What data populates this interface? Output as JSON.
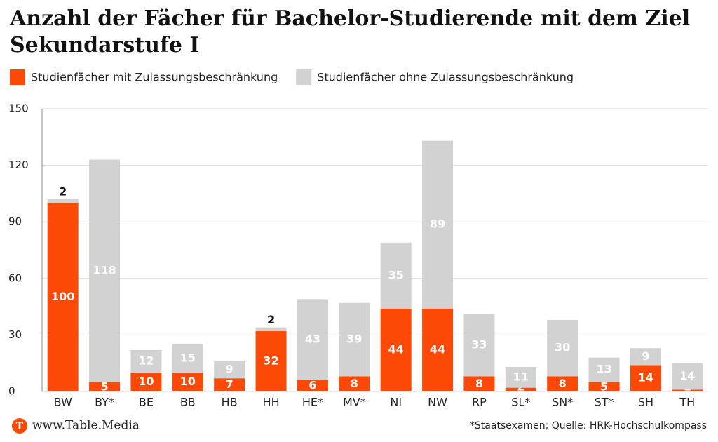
{
  "chart_data": {
    "type": "stacked_bar",
    "title": "Anzahl der Fächer für Bachelor-Studierende mit dem Ziel Sekundarstufe I",
    "categories": [
      "BW",
      "BY*",
      "BE",
      "BB",
      "HB",
      "HH",
      "HE*",
      "MV*",
      "NI",
      "NW",
      "RP",
      "SL*",
      "SN*",
      "ST*",
      "SH",
      "TH"
    ],
    "series": [
      {
        "name": "Studienfächer mit Zulassungsbeschränkung",
        "color": "#fc4a06",
        "values": [
          100,
          5,
          10,
          10,
          7,
          32,
          6,
          8,
          44,
          44,
          8,
          2,
          8,
          5,
          14,
          1
        ]
      },
      {
        "name": "Studienfächer ohne Zulassungsbeschränkung",
        "color": "#d2d2d2",
        "values": [
          2,
          118,
          12,
          15,
          9,
          2,
          43,
          39,
          35,
          89,
          33,
          11,
          30,
          13,
          9,
          14
        ]
      }
    ],
    "ylim": [
      0,
      150
    ],
    "yticks": [
      0,
      30,
      60,
      90,
      120,
      150
    ],
    "grid": true,
    "logo": "T",
    "source_site": "www.Table.Media",
    "footnote": "*Staatsexamen; Quelle: HRK-Hochschulkompass"
  }
}
